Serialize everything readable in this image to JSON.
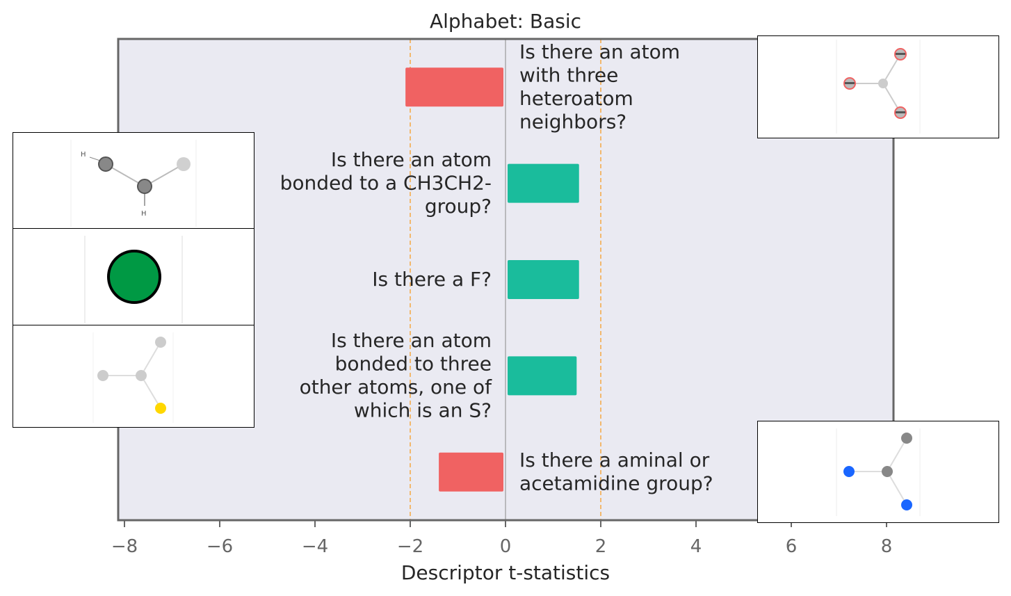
{
  "chart_data": {
    "type": "bar",
    "orientation": "horizontal",
    "title": "Alphabet: Basic",
    "xlabel": "Descriptor t-statistics",
    "xlim": [
      -8.2,
      8.2
    ],
    "x_ticks": [
      -8,
      -6,
      -4,
      -2,
      0,
      2,
      4,
      6,
      8
    ],
    "x_tick_labels": [
      "−8",
      "−6",
      "−4",
      "−2",
      "0",
      "2",
      "4",
      "6",
      "8"
    ],
    "reference_lines": [
      -2,
      2
    ],
    "colors": {
      "negative": "#f06262",
      "positive": "#1abc9c",
      "reference_line": "#f5a742",
      "plot_background": "#eaeaf2",
      "frame": "#666666"
    },
    "bars": [
      {
        "label": [
          "Is there an atom",
          "with three",
          "heteroatom",
          "neighbors?"
        ],
        "value": -2.1
      },
      {
        "label": [
          "Is there an atom",
          "bonded to a CH3CH2-",
          "group?"
        ],
        "value": 1.5
      },
      {
        "label": [
          "Is there a F?"
        ],
        "value": 1.5
      },
      {
        "label": [
          "Is there an atom",
          "bonded to three",
          "other atoms, one of",
          "which is an S?"
        ],
        "value": 1.45
      },
      {
        "label": [
          "Is there a aminal or",
          "acetamidine group?"
        ],
        "value": -1.4
      }
    ],
    "thumbnails": {
      "ethyl_label_top": "H",
      "ethyl_label_bottom": "H"
    }
  }
}
